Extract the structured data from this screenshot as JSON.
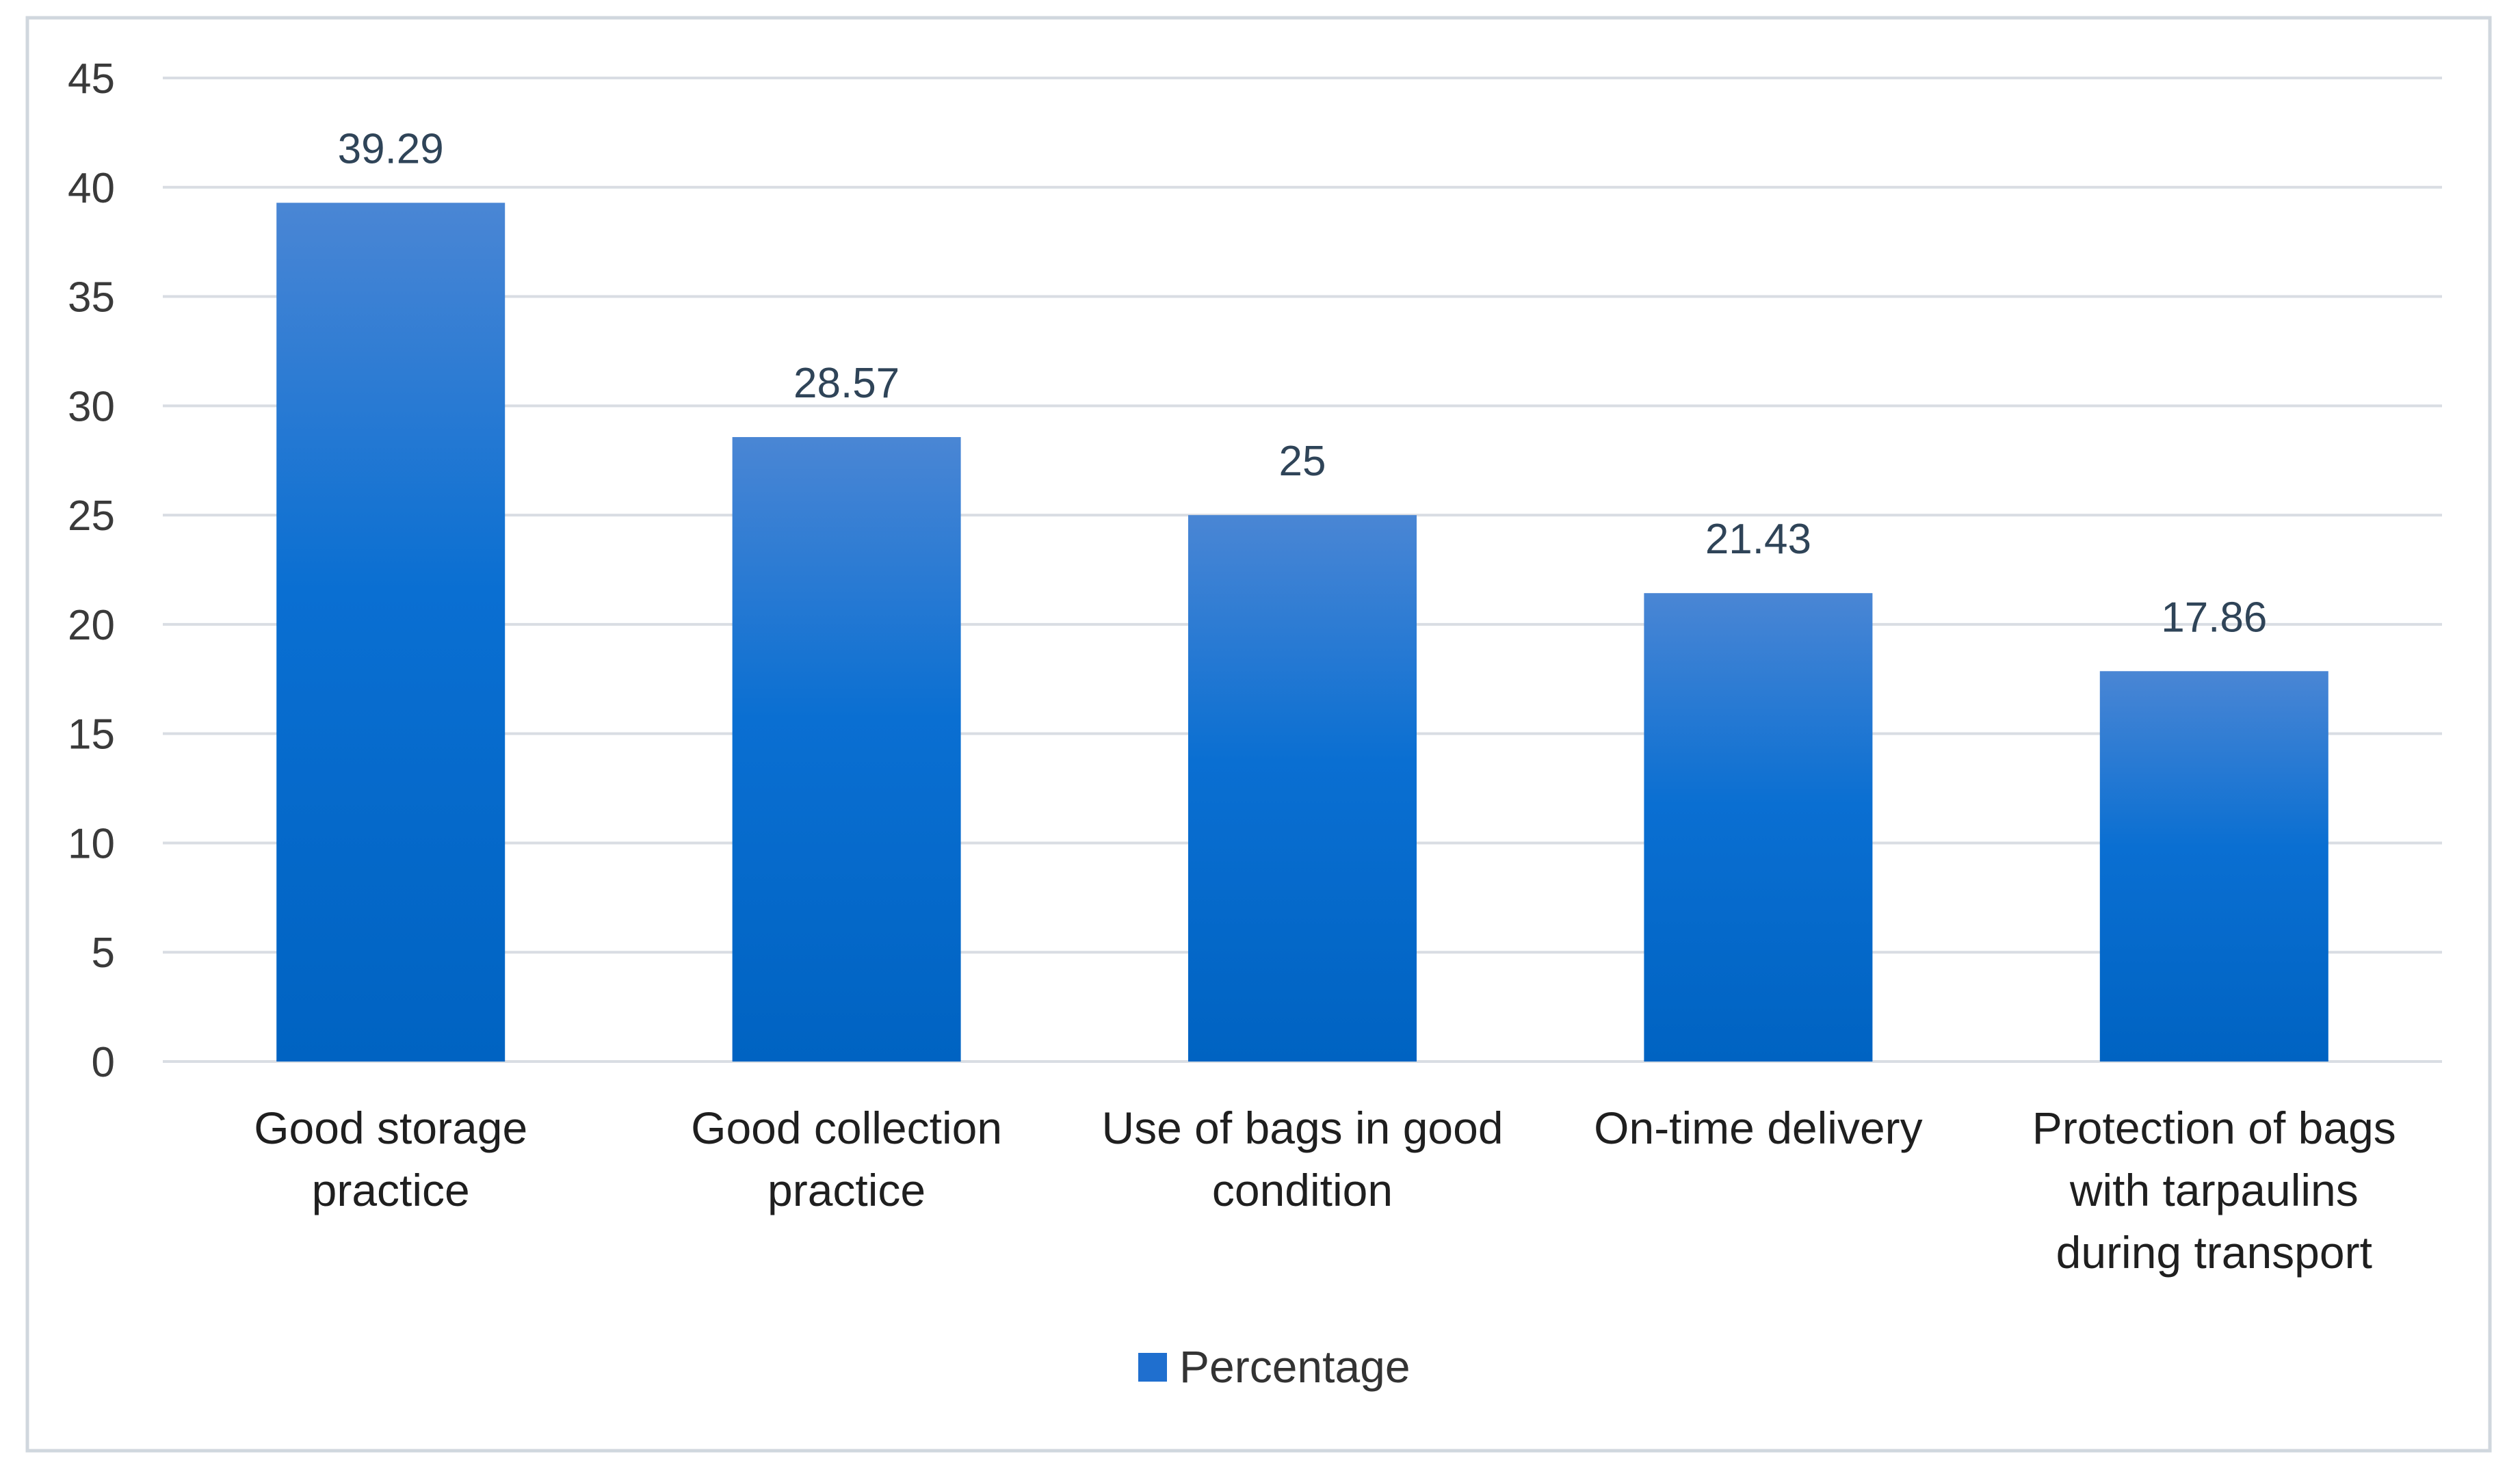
{
  "chart_data": {
    "type": "bar",
    "categories": [
      [
        "Good storage",
        "practice"
      ],
      [
        "Good collection",
        "practice"
      ],
      [
        "Use of bags in good",
        "condition"
      ],
      [
        "On-time delivery"
      ],
      [
        "Protection of bags",
        "with tarpaulins",
        "during transport"
      ]
    ],
    "series": [
      {
        "name": "Percentage",
        "values": [
          39.29,
          28.57,
          25,
          21.43,
          17.86
        ]
      }
    ],
    "data_labels": [
      "39.29",
      "28.57",
      "25",
      "21.43",
      "17.86"
    ],
    "y_ticks": [
      0,
      5,
      10,
      15,
      20,
      25,
      30,
      35,
      40,
      45
    ],
    "ylim": [
      0,
      45
    ],
    "grid": true,
    "legend_position": "bottom",
    "colors": {
      "bar_top": "#4a86d4",
      "bar_mid": "#0a6fd2",
      "bar_bottom": "#0063c2",
      "legend_swatch": "#1f6fcf",
      "gridline": "#d9dde3",
      "border": "#d0d7de"
    }
  }
}
